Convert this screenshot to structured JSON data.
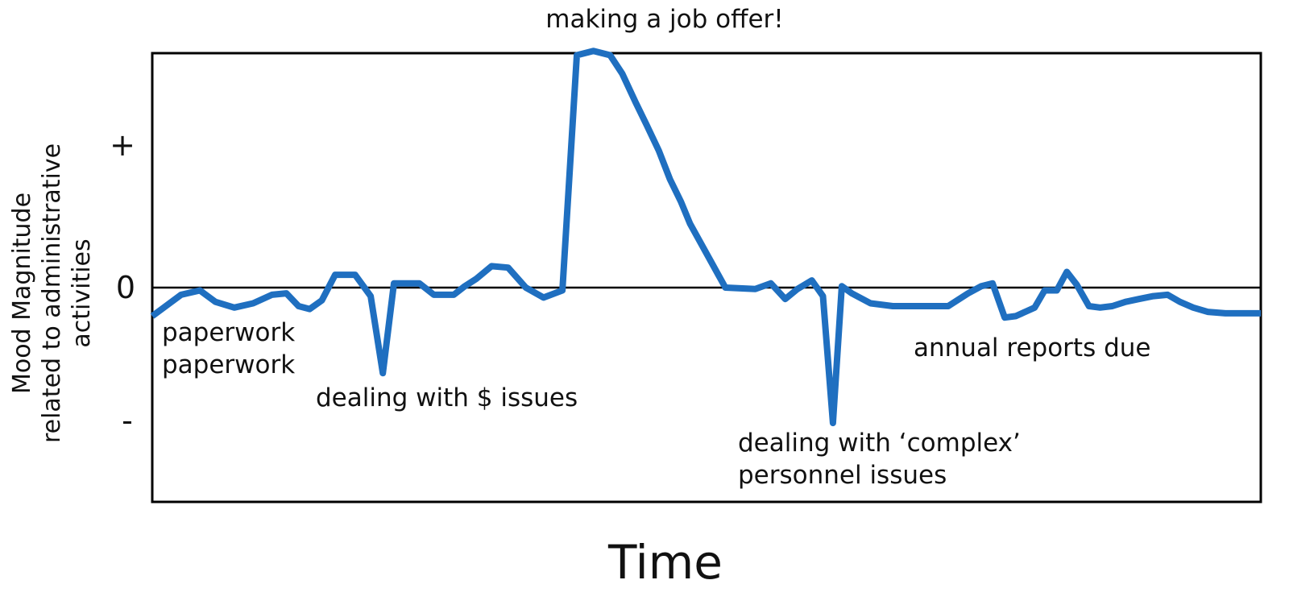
{
  "chart_data": {
    "type": "line",
    "title": "",
    "xlabel": "Time",
    "ylabel_lines": [
      "Mood Magnitude",
      "related to administrative",
      "activities"
    ],
    "y_ticks": [
      {
        "label": "+",
        "value": 1
      },
      {
        "label": "0",
        "value": 0
      },
      {
        "label": "-",
        "value": -1
      }
    ],
    "xlim": [
      0,
      100
    ],
    "ylim": [
      -1.5,
      1.65
    ],
    "zero_line": true,
    "grid": false,
    "legend": "none",
    "line_color": "#1f6fc0",
    "axis_color": "#000000",
    "series": [
      {
        "x": [
          0,
          2.6,
          4.3,
          5.7,
          7.4,
          9.1,
          10.8,
          12.1,
          13.2,
          14.2,
          15.3,
          16.5,
          18.3,
          19.7,
          20.8,
          21.8,
          22.6,
          23.3,
          24.1,
          25.4,
          27.2,
          28.2,
          29.2,
          30.6,
          32.1,
          33.7,
          35.3,
          37,
          38.3,
          39.8,
          41.3,
          42.4,
          43.6,
          44.6,
          45.7,
          46.7,
          47.7,
          48.5,
          51.7,
          54.4,
          55.8,
          57.1,
          58.2,
          59.5,
          60.5,
          61.4,
          62.2,
          63.1,
          64.8,
          66.8,
          68.6,
          70,
          71.8,
          73.6,
          74.8,
          75.8,
          76.9,
          77.9,
          79.6,
          80.5,
          81.6,
          82.5,
          83.4,
          84.5,
          85.5,
          86.6,
          87.8,
          89,
          90.3,
          91.6,
          92.7,
          93.9,
          95.2,
          96.8,
          99.2,
          100
        ],
        "y": [
          -0.2,
          -0.05,
          -0.02,
          -0.1,
          -0.14,
          -0.11,
          -0.05,
          -0.04,
          -0.13,
          -0.15,
          -0.09,
          0.09,
          0.09,
          -0.06,
          -0.6,
          0.03,
          0.03,
          0.03,
          0.03,
          -0.05,
          -0.05,
          0.01,
          0.06,
          0.15,
          0.14,
          0,
          -0.07,
          -0.02,
          1.63,
          1.66,
          1.63,
          1.5,
          1.3,
          1.14,
          0.96,
          0.76,
          0.6,
          0.45,
          0,
          -0.01,
          0.03,
          -0.08,
          -0.01,
          0.05,
          -0.06,
          -0.95,
          0.01,
          -0.04,
          -0.11,
          -0.13,
          -0.13,
          -0.13,
          -0.13,
          -0.04,
          0.01,
          0.03,
          -0.21,
          -0.2,
          -0.14,
          -0.02,
          -0.02,
          0.11,
          0.02,
          -0.13,
          -0.14,
          -0.13,
          -0.1,
          -0.08,
          -0.06,
          -0.05,
          -0.1,
          -0.14,
          -0.17,
          -0.18,
          -0.18,
          -0.18
        ]
      }
    ],
    "annotations": [
      {
        "lines": [
          "making a job offer!"
        ]
      },
      {
        "lines": [
          "paperwork",
          "paperwork"
        ]
      },
      {
        "lines": [
          "dealing with $ issues"
        ]
      },
      {
        "lines": [
          "dealing with ‘complex’",
          "personnel issues"
        ]
      },
      {
        "lines": [
          "annual reports due"
        ]
      }
    ]
  }
}
